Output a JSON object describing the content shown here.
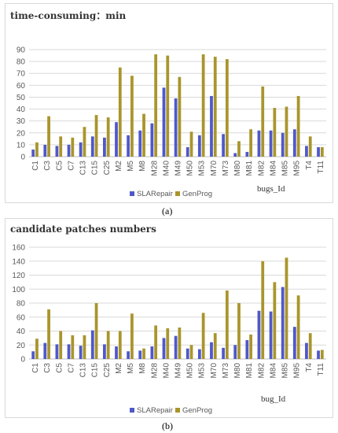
{
  "captions": [
    "(a)",
    "(b)"
  ],
  "colors": {
    "SLARepair": "#4f58c9",
    "GenProg": "#a9952c",
    "grid": "#d9d9d9",
    "axis": "#333333"
  },
  "chart_data": [
    {
      "type": "bar",
      "title": "time-consuming：min",
      "xlabel": "bugs_Id",
      "ylabel": "",
      "ylim": [
        0,
        90
      ],
      "yticks": [
        0,
        10,
        20,
        30,
        40,
        50,
        60,
        70,
        80,
        90
      ],
      "grid": true,
      "legend": "bottom",
      "categories": [
        "C1",
        "C3",
        "C5",
        "C7",
        "C13",
        "C15",
        "C25",
        "M2",
        "M5",
        "M8",
        "M28",
        "M40",
        "M49",
        "M50",
        "M53",
        "M70",
        "M73",
        "M80",
        "M81",
        "M82",
        "M84",
        "M85",
        "M95",
        "T4",
        "T11"
      ],
      "series": [
        {
          "name": "SLARepair",
          "values": [
            6,
            10,
            9,
            10,
            12,
            17,
            16,
            29,
            18,
            22,
            28,
            58,
            49,
            8,
            18,
            51,
            19,
            3,
            4,
            22,
            22,
            20,
            23,
            9,
            8
          ]
        },
        {
          "name": "GenProg",
          "values": [
            12,
            34,
            17,
            16,
            25,
            35,
            33,
            75,
            68,
            36,
            86,
            85,
            67,
            21,
            86,
            84,
            82,
            13,
            23,
            59,
            41,
            42,
            51,
            17,
            8
          ]
        }
      ]
    },
    {
      "type": "bar",
      "title": "candidate patches numbers",
      "xlabel": "bug_Id",
      "ylabel": "",
      "ylim": [
        0,
        160
      ],
      "yticks": [
        0,
        20,
        40,
        60,
        80,
        100,
        120,
        140,
        160
      ],
      "grid": true,
      "legend": "bottom",
      "categories": [
        "C1",
        "C3",
        "C5",
        "C7",
        "C13",
        "C15",
        "C25",
        "M2",
        "M5",
        "M8",
        "M28",
        "M40",
        "M49",
        "M50",
        "M53",
        "M70",
        "M73",
        "M80",
        "M81",
        "M82",
        "M84",
        "M85",
        "M95",
        "T4",
        "T11"
      ],
      "series": [
        {
          "name": "SLARepair",
          "values": [
            11,
            23,
            21,
            21,
            19,
            41,
            21,
            18,
            11,
            12,
            18,
            30,
            33,
            15,
            14,
            24,
            16,
            20,
            27,
            69,
            68,
            103,
            46,
            23,
            12
          ]
        },
        {
          "name": "GenProg",
          "values": [
            29,
            71,
            40,
            34,
            34,
            80,
            40,
            40,
            65,
            15,
            48,
            44,
            45,
            20,
            66,
            37,
            98,
            80,
            35,
            140,
            110,
            145,
            91,
            37,
            13
          ]
        }
      ]
    }
  ]
}
